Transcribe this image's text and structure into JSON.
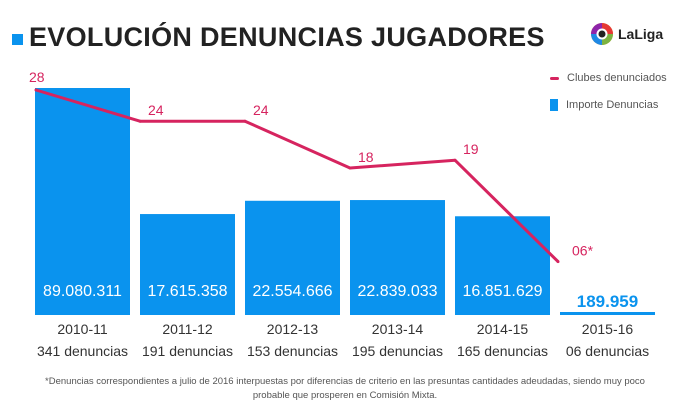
{
  "title": "EVOLUCIÓN DENUNCIAS JUGADORES",
  "logo_text": "LaLiga",
  "footnote": "*Denuncias correspondientes a julio de 2016 interpuestas por diferencias de criterio en las presuntas cantidades adeudadas, siendo muy poco probable que prosperen en Comisión Mixta.",
  "colors": {
    "bars": "#0a93ee",
    "line": "#d6245f"
  },
  "chart_data": {
    "type": "bar",
    "title": "EVOLUCIÓN DENUNCIAS JUGADORES",
    "categories": [
      "2010-11",
      "2011-12",
      "2012-13",
      "2013-14",
      "2014-15",
      "2015-16"
    ],
    "sublabels": [
      "341 denuncias",
      "191 denuncias",
      "153 denuncias",
      "195 denuncias",
      "165 denuncias",
      "06 denuncias"
    ],
    "legend_placement": "top-right",
    "grid": false,
    "series": [
      {
        "name": "Importe Denuncias",
        "type": "bar",
        "values": [
          89080311,
          17615358,
          22554666,
          22839033,
          16851629,
          189959
        ],
        "labels": [
          "89.080.311",
          "17.615.358",
          "22.554.666",
          "22.839.033",
          "16.851.629",
          "189.959"
        ]
      },
      {
        "name": "Clubes denunciados",
        "type": "line",
        "values": [
          28,
          24,
          24,
          18,
          19,
          6
        ],
        "labels": [
          "28",
          "24",
          "24",
          "18",
          "19",
          "06*"
        ]
      }
    ]
  }
}
